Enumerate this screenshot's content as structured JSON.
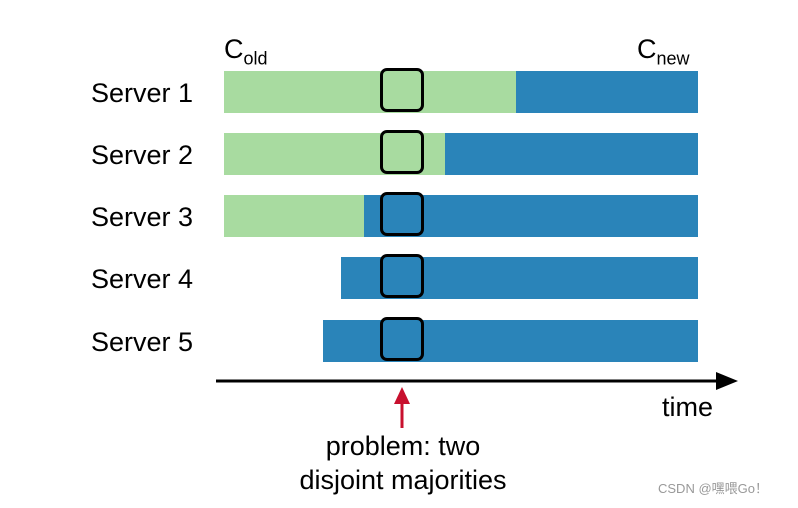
{
  "config_labels": {
    "old_base": "C",
    "old_sub": "old",
    "new_base": "C",
    "new_sub": "new"
  },
  "servers": [
    {
      "label": "Server 1"
    },
    {
      "label": "Server 2"
    },
    {
      "label": "Server 3"
    },
    {
      "label": "Server 4"
    },
    {
      "label": "Server 5"
    }
  ],
  "axis": {
    "label": "time"
  },
  "annotation": {
    "line1": "problem: two",
    "line2": "disjoint majorities"
  },
  "colors": {
    "old_config": "#a8dba0",
    "new_config": "#2a84b9",
    "arrow": "#c8102e"
  },
  "watermark": "CSDN @嘿喂Go！"
}
